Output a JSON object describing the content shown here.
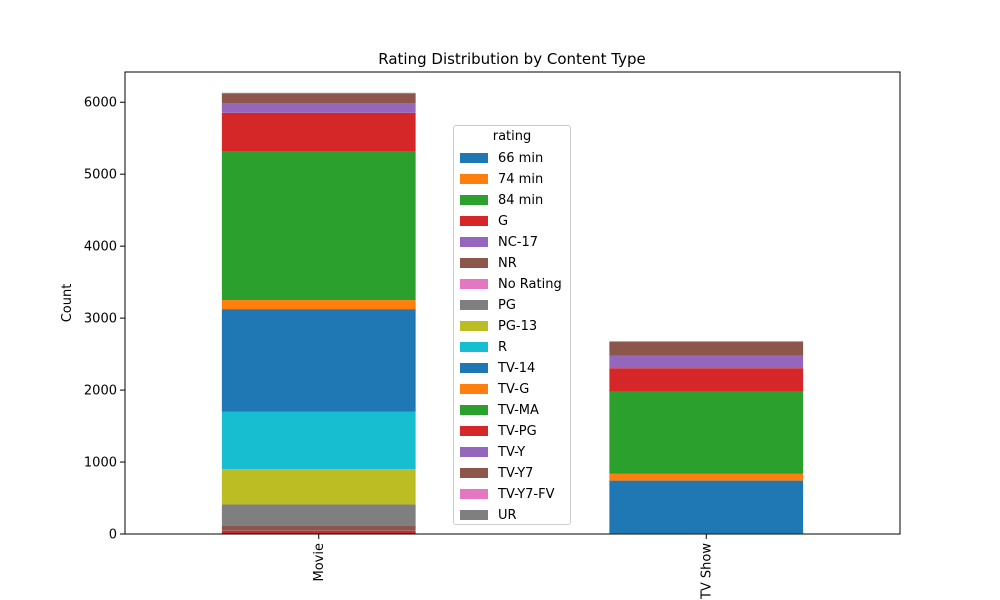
{
  "chart_data": {
    "type": "bar",
    "stacked": true,
    "title": "Rating Distribution by Content Type",
    "xlabel": "",
    "ylabel": "Count",
    "ylim": [
      0,
      6420
    ],
    "yticks": [
      0,
      1000,
      2000,
      3000,
      4000,
      5000,
      6000
    ],
    "categories": [
      "Movie",
      "TV Show"
    ],
    "legend": {
      "title": "rating",
      "placement": "center"
    },
    "series": [
      {
        "name": "66 min",
        "color": "#1f77b4",
        "values": [
          1,
          0
        ]
      },
      {
        "name": "74 min",
        "color": "#ff7f0e",
        "values": [
          1,
          0
        ]
      },
      {
        "name": "84 min",
        "color": "#2ca02c",
        "values": [
          1,
          0
        ]
      },
      {
        "name": "G",
        "color": "#d62728",
        "values": [
          41,
          0
        ]
      },
      {
        "name": "NC-17",
        "color": "#9467bd",
        "values": [
          3,
          0
        ]
      },
      {
        "name": "NR",
        "color": "#8c564b",
        "values": [
          75,
          5
        ]
      },
      {
        "name": "No Rating",
        "color": "#e377c2",
        "values": [
          2,
          2
        ]
      },
      {
        "name": "PG",
        "color": "#7f7f7f",
        "values": [
          287,
          0
        ]
      },
      {
        "name": "PG-13",
        "color": "#bcbd22",
        "values": [
          490,
          0
        ]
      },
      {
        "name": "R",
        "color": "#17becf",
        "values": [
          797,
          2
        ]
      },
      {
        "name": "TV-14",
        "color": "#1f77b4",
        "values": [
          1427,
          733
        ]
      },
      {
        "name": "TV-G",
        "color": "#ff7f0e",
        "values": [
          126,
          94
        ]
      },
      {
        "name": "TV-MA",
        "color": "#2ca02c",
        "values": [
          2062,
          1145
        ]
      },
      {
        "name": "TV-PG",
        "color": "#d62728",
        "values": [
          540,
          323
        ]
      },
      {
        "name": "TV-Y",
        "color": "#9467bd",
        "values": [
          131,
          176
        ]
      },
      {
        "name": "TV-Y7",
        "color": "#8c564b",
        "values": [
          139,
          195
        ]
      },
      {
        "name": "TV-Y7-FV",
        "color": "#e377c2",
        "values": [
          5,
          1
        ]
      },
      {
        "name": "UR",
        "color": "#7f7f7f",
        "values": [
          3,
          0
        ]
      }
    ]
  }
}
